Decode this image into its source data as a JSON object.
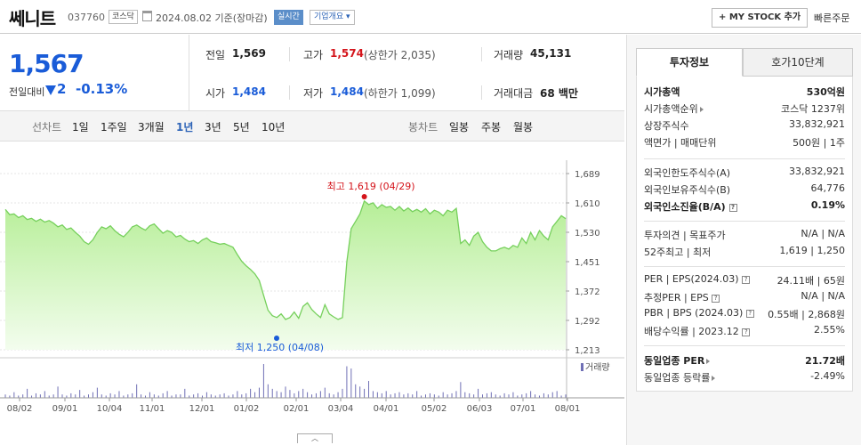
{
  "header": {
    "name": "쎄니트",
    "code": "037760",
    "market": "코스닥",
    "date_text": "2024.08.02  기준(장마감)",
    "realtime": "실시간",
    "overview": "기업개요 ▾",
    "mystock": "+ MY STOCK 추가",
    "quick_order": "빠른주문"
  },
  "price": {
    "current": "1,567",
    "prev_label": "전일대비",
    "change": "2",
    "change_pct": "-0.13%"
  },
  "stats": {
    "prev_label": "전일",
    "prev_val": "1,569",
    "high_label": "고가",
    "high_val": "1,574",
    "upper_limit": "(상한가 2,035)",
    "volume_label": "거래량",
    "volume_val": "45,131",
    "open_label": "시가",
    "open_val": "1,484",
    "low_label": "저가",
    "low_val": "1,484",
    "lower_limit": "(하한가 1,099)",
    "amount_label": "거래대금",
    "amount_val": "68 백만"
  },
  "tabs": {
    "line": "선차트",
    "periods": [
      "1일",
      "1주일",
      "3개월",
      "1년",
      "3년",
      "5년",
      "10년"
    ],
    "active_period": "1년",
    "candle": "봉차트",
    "candle_periods": [
      "일봉",
      "주봉",
      "월봉"
    ]
  },
  "chart_data": {
    "type": "area",
    "y_ticks": [
      "1,689",
      "1,610",
      "1,530",
      "1,451",
      "1,372",
      "1,292",
      "1,213"
    ],
    "ylim": [
      1213,
      1689
    ],
    "x_ticks": [
      "08/02",
      "09/01",
      "10/04",
      "11/01",
      "12/01",
      "01/02",
      "02/01",
      "03/04",
      "04/01",
      "05/02",
      "06/03",
      "07/01",
      "08/01"
    ],
    "series": [
      {
        "values": [
          1592,
          1578,
          1580,
          1570,
          1575,
          1565,
          1568,
          1560,
          1566,
          1558,
          1562,
          1555,
          1545,
          1550,
          1538,
          1542,
          1530,
          1520,
          1505,
          1498,
          1510,
          1530,
          1545,
          1540,
          1548,
          1535,
          1525,
          1518,
          1530,
          1545,
          1550,
          1542,
          1536,
          1548,
          1553,
          1540,
          1528,
          1535,
          1530,
          1518,
          1522,
          1512,
          1505,
          1508,
          1500,
          1510,
          1515,
          1505,
          1502,
          1498,
          1500,
          1495,
          1490,
          1470,
          1452,
          1440,
          1430,
          1418,
          1400,
          1360,
          1320,
          1305,
          1300,
          1310,
          1295,
          1300,
          1315,
          1298,
          1330,
          1340,
          1322,
          1310,
          1300,
          1335,
          1310,
          1302,
          1295,
          1300,
          1450,
          1540,
          1560,
          1580,
          1615,
          1605,
          1610,
          1595,
          1605,
          1598,
          1600,
          1590,
          1600,
          1588,
          1596,
          1586,
          1592,
          1585,
          1594,
          1580,
          1590,
          1585,
          1575,
          1590,
          1585,
          1595,
          1500,
          1510,
          1495,
          1520,
          1530,
          1505,
          1490,
          1480,
          1480,
          1486,
          1490,
          1485,
          1495,
          1490,
          1515,
          1500,
          1530,
          1510,
          1535,
          1520,
          1510,
          1545,
          1560,
          1575,
          1567
        ]
      }
    ],
    "volume": [
      3,
      2,
      5,
      2,
      3,
      8,
      2,
      4,
      3,
      6,
      2,
      3,
      10,
      3,
      2,
      4,
      3,
      7,
      2,
      3,
      5,
      9,
      3,
      2,
      4,
      3,
      6,
      2,
      3,
      4,
      12,
      3,
      2,
      5,
      3,
      2,
      4,
      6,
      2,
      3,
      3,
      8,
      2,
      3,
      4,
      2,
      5,
      3,
      2,
      3,
      4,
      2,
      3,
      6,
      3,
      4,
      8,
      5,
      9,
      30,
      12,
      8,
      6,
      5,
      10,
      7,
      4,
      6,
      8,
      5,
      3,
      4,
      6,
      9,
      4,
      3,
      5,
      8,
      28,
      26,
      12,
      10,
      8,
      15,
      6,
      5,
      4,
      6,
      3,
      4,
      5,
      3,
      4,
      3,
      6,
      2,
      3,
      4,
      3,
      2,
      5,
      3,
      4,
      6,
      14,
      5,
      4,
      3,
      8,
      3,
      4,
      5,
      3,
      2,
      4,
      3,
      5,
      2,
      3,
      4,
      6,
      3,
      2,
      4,
      3,
      5,
      6,
      2,
      3
    ],
    "volume_label": "거래량",
    "annotations": {
      "high": "최고 1,619 (04/29)",
      "low": "최저 1,250 (04/08)"
    }
  },
  "sidebar": {
    "tab_active": "투자정보",
    "tab_inactive": "호가10단계",
    "rows": [
      {
        "label": "시가총액",
        "value": "530억원",
        "bold": true
      },
      {
        "label": "시가총액순위",
        "value": "코스닥 1237위"
      },
      {
        "label": "상장주식수",
        "value": "33,832,921"
      },
      {
        "label": "액면가 | 매매단위",
        "value": "500원 | 1주"
      },
      {
        "label": "외국인한도주식수(A)",
        "value": "33,832,921"
      },
      {
        "label": "외국인보유주식수(B)",
        "value": "64,776"
      },
      {
        "label": "외국인소진율(B/A)",
        "value": "0.19%",
        "bold": true
      },
      {
        "label": "투자의견 | 목표주가",
        "value": "N/A | N/A"
      },
      {
        "label": "52주최고 | 최저",
        "value": "1,619 | 1,250"
      },
      {
        "label": "PER | EPS(2024.03)",
        "value": "24.11배 | 65원"
      },
      {
        "label": "추정PER | EPS",
        "value": "N/A | N/A"
      },
      {
        "label": "PBR | BPS (2024.03)",
        "value": "0.55배 | 2,868원"
      },
      {
        "label": "배당수익률 | 2023.12",
        "value": "2.55%"
      },
      {
        "label": "동일업종 PER",
        "value": "21.72배",
        "bold": true
      },
      {
        "label": "동일업종 등락률",
        "value": "-2.49%",
        "blue": true
      }
    ]
  },
  "colors": {
    "up": "#d4141b",
    "down": "#1a5cd8",
    "chart_line": "#76d05c",
    "chart_fill_top": "#b8ef9c"
  }
}
